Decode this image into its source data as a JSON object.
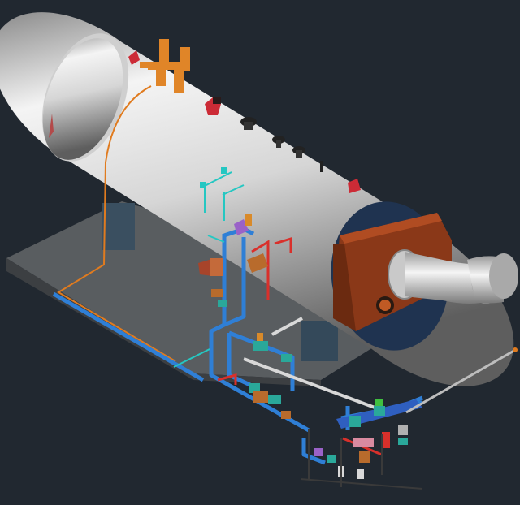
{
  "scene": {
    "background": "#212830",
    "colors": {
      "shell_light": "#f2f2f2",
      "shell_mid": "#bdbdbd",
      "shell_dark": "#6f6f6f",
      "end_cap": "#1e3350",
      "refractory": "#8e3a1c",
      "skid": "#515558",
      "skid_top": "#606467",
      "pipe_blue": "#2f7fd6",
      "pipe_red": "#d9302b",
      "pipe_orange": "#e07b1f",
      "pipe_cyan": "#25c7c2",
      "pipe_white": "#dcdcdc",
      "valve_bronze": "#b86b2c",
      "valve_teal": "#2aa89a",
      "valve_purple": "#9a62c8",
      "flange_red": "#cc2b36"
    }
  }
}
